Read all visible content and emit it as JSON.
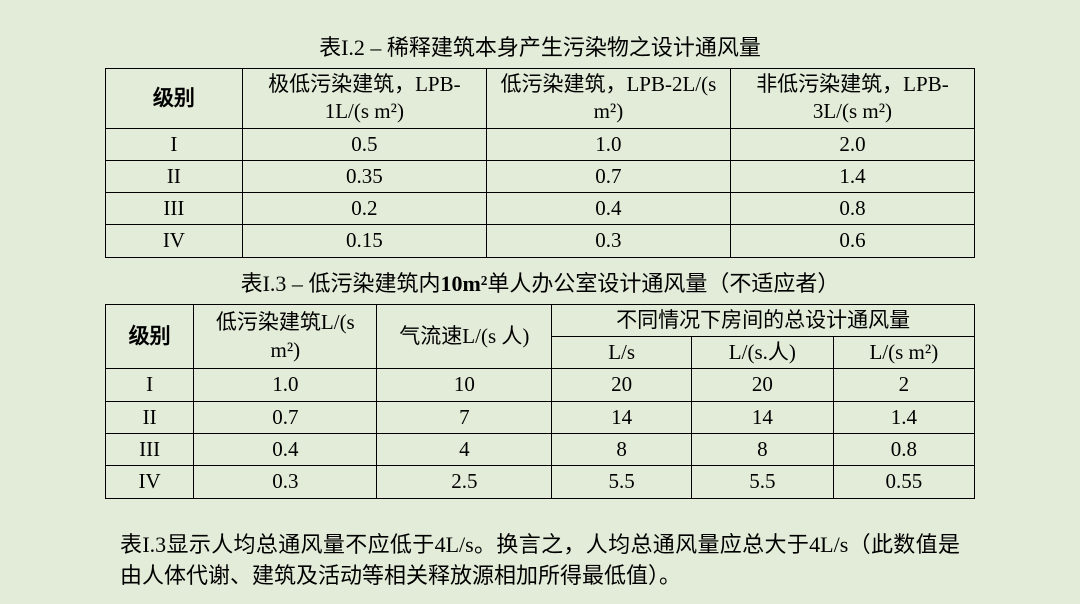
{
  "background_color": "#e2ecd8",
  "text_color": "#000000",
  "border_color": "#000000",
  "font_family": "SimSun, 宋体, serif",
  "title_fontsize": 22,
  "cell_fontsize": 21,
  "table1": {
    "title_prefix": "表I.2  –  ",
    "title_main": "稀释建筑本身产生污染物之设计通风量",
    "columns": [
      "级别",
      "极低污染建筑，LPB-1L/(s m²)",
      "低污染建筑，LPB-2L/(s m²)",
      "非低污染建筑，LPB-3L/(s m²)"
    ],
    "rows": [
      [
        "I",
        "0.5",
        "1.0",
        "2.0"
      ],
      [
        "II",
        "0.35",
        "0.7",
        "1.4"
      ],
      [
        "III",
        "0.2",
        "0.4",
        "0.8"
      ],
      [
        "IV",
        "0.15",
        "0.3",
        "0.6"
      ]
    ]
  },
  "table2": {
    "title_prefix": "表I.3  –  ",
    "title_main_a": "低污染建筑内",
    "title_main_bold": "10m²",
    "title_main_b": "单人办公室设计通风量（不适应者）",
    "header_top": {
      "level": "级别",
      "lpb": "低污染建筑L/(s m²)",
      "airflow": "气流速L/(s 人)",
      "total_group": "不同情况下房间的总设计通风量"
    },
    "header_sub": [
      "L/s",
      "L/(s.人)",
      "L/(s m²)"
    ],
    "rows": [
      [
        "I",
        "1.0",
        "10",
        "20",
        "20",
        "2"
      ],
      [
        "II",
        "0.7",
        "7",
        "14",
        "14",
        "1.4"
      ],
      [
        "III",
        "0.4",
        "4",
        "8",
        "8",
        "0.8"
      ],
      [
        "IV",
        "0.3",
        "2.5",
        "5.5",
        "5.5",
        "0.55"
      ]
    ]
  },
  "footnote": "表I.3显示人均总通风量不应低于4L/s。换言之，人均总通风量应总大于4L/s（此数值是由人体代谢、建筑及活动等相关释放源相加所得最低值）。"
}
